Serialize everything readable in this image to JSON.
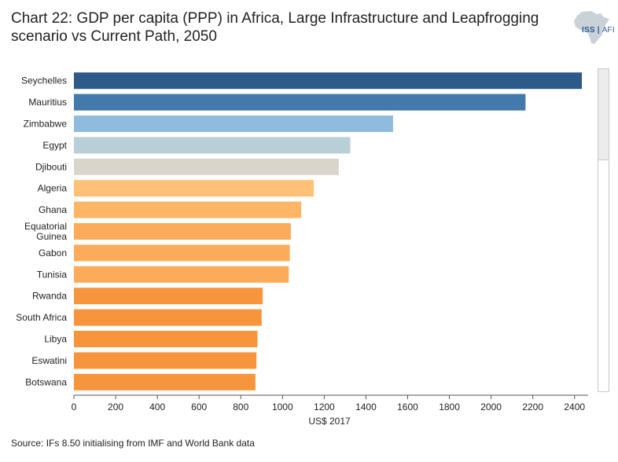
{
  "header": {
    "title": "Chart 22: GDP per capita (PPP) in Africa, Large Infrastructure and Leapfrogging scenario vs Current Path, 2050",
    "logo_main": "ISS",
    "logo_sub": "AFI"
  },
  "footer": {
    "source": "Source: IFs 8.50 initialising from IMF and World Bank data"
  },
  "chart_data": {
    "type": "bar",
    "orientation": "horizontal",
    "title": "Chart 22: GDP per capita (PPP) in Africa, Large Infrastructure and Leapfrogging scenario vs Current Path, 2050",
    "xlabel": "US$ 2017",
    "ylabel": "",
    "xlim": [
      0,
      2450
    ],
    "xticks": [
      0,
      200,
      400,
      600,
      800,
      1000,
      1200,
      1400,
      1600,
      1800,
      2000,
      2200,
      2400
    ],
    "grid": false,
    "categories": [
      {
        "label": [
          "Seychelles"
        ],
        "value": 2435,
        "color": "#2c5a8a"
      },
      {
        "label": [
          "Mauritius"
        ],
        "value": 2165,
        "color": "#4479ab"
      },
      {
        "label": [
          "Zimbabwe"
        ],
        "value": 1530,
        "color": "#8fbcdc"
      },
      {
        "label": [
          "Egypt"
        ],
        "value": 1325,
        "color": "#b9cfd8"
      },
      {
        "label": [
          "Djibouti"
        ],
        "value": 1270,
        "color": "#d9d5cb"
      },
      {
        "label": [
          "Algeria"
        ],
        "value": 1150,
        "color": "#ffc178"
      },
      {
        "label": [
          "Ghana"
        ],
        "value": 1090,
        "color": "#ffb566"
      },
      {
        "label": [
          "Equatorial",
          "Guinea"
        ],
        "value": 1040,
        "color": "#fcab5a"
      },
      {
        "label": [
          "Gabon"
        ],
        "value": 1035,
        "color": "#fcab5a"
      },
      {
        "label": [
          "Tunisia"
        ],
        "value": 1030,
        "color": "#fcab5a"
      },
      {
        "label": [
          "Rwanda"
        ],
        "value": 905,
        "color": "#f7953d"
      },
      {
        "label": [
          "South Africa"
        ],
        "value": 900,
        "color": "#f7953d"
      },
      {
        "label": [
          "Libya"
        ],
        "value": 880,
        "color": "#f7953d"
      },
      {
        "label": [
          "Eswatini"
        ],
        "value": 875,
        "color": "#f7953d"
      },
      {
        "label": [
          "Botswana"
        ],
        "value": 870,
        "color": "#f7953d"
      }
    ]
  }
}
